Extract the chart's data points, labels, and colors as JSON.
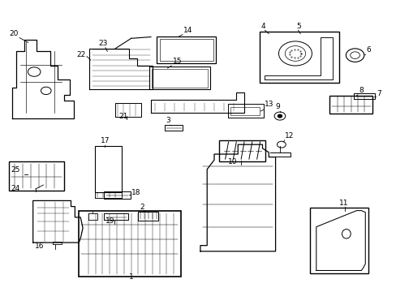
{
  "bg_color": "#ffffff",
  "border_color": "#000000",
  "line_color": "#000000",
  "text_color": "#000000",
  "fig_width": 4.89,
  "fig_height": 3.6
}
